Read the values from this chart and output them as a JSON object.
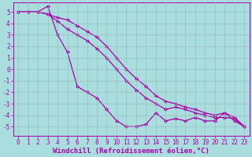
{
  "xlabel": "Windchill (Refroidissement éolien,°C)",
  "x": [
    0,
    1,
    2,
    3,
    4,
    5,
    6,
    7,
    8,
    9,
    10,
    11,
    12,
    13,
    14,
    15,
    16,
    17,
    18,
    19,
    20,
    21,
    22,
    23
  ],
  "line1": [
    5.0,
    5.0,
    5.0,
    5.5,
    3.0,
    1.5,
    -1.5,
    -2.0,
    -2.5,
    -3.5,
    -4.5,
    -5.0,
    -5.0,
    -4.8,
    -3.8,
    -4.5,
    -4.3,
    -4.5,
    -4.2,
    -4.5,
    -4.5,
    -3.8,
    -4.5,
    -5.0
  ],
  "line2": [
    5.0,
    5.0,
    5.0,
    4.8,
    4.2,
    3.5,
    3.0,
    2.5,
    1.8,
    1.0,
    0.0,
    -1.0,
    -1.8,
    -2.5,
    -3.0,
    -3.5,
    -3.3,
    -3.5,
    -3.8,
    -4.0,
    -4.2,
    -4.2,
    -4.3,
    -5.0
  ],
  "line3": [
    5.0,
    5.0,
    5.0,
    4.8,
    4.5,
    4.3,
    3.8,
    3.3,
    2.8,
    2.0,
    1.0,
    0.0,
    -0.8,
    -1.5,
    -2.3,
    -2.8,
    -3.0,
    -3.3,
    -3.5,
    -3.8,
    -4.0,
    -3.8,
    -4.2,
    -5.0
  ],
  "line_color": "#aa00aa",
  "bg_color": "#aadddd",
  "grid_color": "#99bbbb",
  "ylim": [
    -5.8,
    5.8
  ],
  "yticks": [
    -5,
    -4,
    -3,
    -2,
    -1,
    0,
    1,
    2,
    3,
    4,
    5
  ],
  "xticks": [
    0,
    1,
    2,
    3,
    4,
    5,
    6,
    7,
    8,
    9,
    10,
    11,
    12,
    13,
    14,
    15,
    16,
    17,
    18,
    19,
    20,
    21,
    22,
    23
  ],
  "tick_fontsize": 5.5,
  "xlabel_fontsize": 6.5,
  "marker": "D",
  "markersize": 2.0,
  "linewidth": 0.9
}
